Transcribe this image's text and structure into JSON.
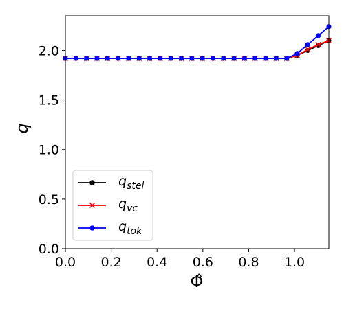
{
  "chart_data": {
    "type": "line",
    "xlabel": "Φ̂",
    "ylabel": "q",
    "xlim": [
      0.0,
      1.15
    ],
    "ylim": [
      0.0,
      2.35
    ],
    "x_ticks": [
      0.0,
      0.2,
      0.4,
      0.6,
      0.8,
      1.0
    ],
    "x_tick_labels": [
      "0.0",
      "0.2",
      "0.4",
      "0.6",
      "0.8",
      "1.0"
    ],
    "y_ticks": [
      0.0,
      0.5,
      1.0,
      1.5,
      2.0
    ],
    "y_tick_labels": [
      "0.0",
      "0.5",
      "1.0",
      "1.5",
      "2.0"
    ],
    "grid": false,
    "legend_position": "lower-left",
    "x": [
      0.0,
      0.046,
      0.092,
      0.138,
      0.184,
      0.23,
      0.276,
      0.322,
      0.368,
      0.414,
      0.46,
      0.506,
      0.552,
      0.598,
      0.644,
      0.69,
      0.736,
      0.782,
      0.828,
      0.874,
      0.92,
      0.966,
      1.012,
      1.058,
      1.104,
      1.15
    ],
    "series": [
      {
        "name": "q_stel",
        "label_main": "q",
        "label_sub": "stel",
        "color": "#000000",
        "marker": "circle",
        "values": [
          1.92,
          1.92,
          1.92,
          1.92,
          1.92,
          1.92,
          1.92,
          1.92,
          1.92,
          1.92,
          1.92,
          1.92,
          1.92,
          1.92,
          1.92,
          1.92,
          1.92,
          1.92,
          1.92,
          1.92,
          1.92,
          1.92,
          1.95,
          2.0,
          2.05,
          2.1
        ]
      },
      {
        "name": "q_vc",
        "label_main": "q",
        "label_sub": "vc",
        "color": "#ff0000",
        "marker": "x",
        "values": [
          1.92,
          1.92,
          1.92,
          1.92,
          1.92,
          1.92,
          1.92,
          1.92,
          1.92,
          1.92,
          1.92,
          1.92,
          1.92,
          1.92,
          1.92,
          1.92,
          1.92,
          1.92,
          1.92,
          1.92,
          1.92,
          1.92,
          1.95,
          2.01,
          2.06,
          2.1
        ]
      },
      {
        "name": "q_tok",
        "label_main": "q",
        "label_sub": "tok",
        "color": "#0000ff",
        "marker": "circle",
        "values": [
          1.92,
          1.92,
          1.92,
          1.92,
          1.92,
          1.92,
          1.92,
          1.92,
          1.92,
          1.92,
          1.92,
          1.92,
          1.92,
          1.92,
          1.92,
          1.92,
          1.92,
          1.92,
          1.92,
          1.92,
          1.92,
          1.92,
          1.97,
          2.06,
          2.15,
          2.24
        ]
      }
    ]
  }
}
